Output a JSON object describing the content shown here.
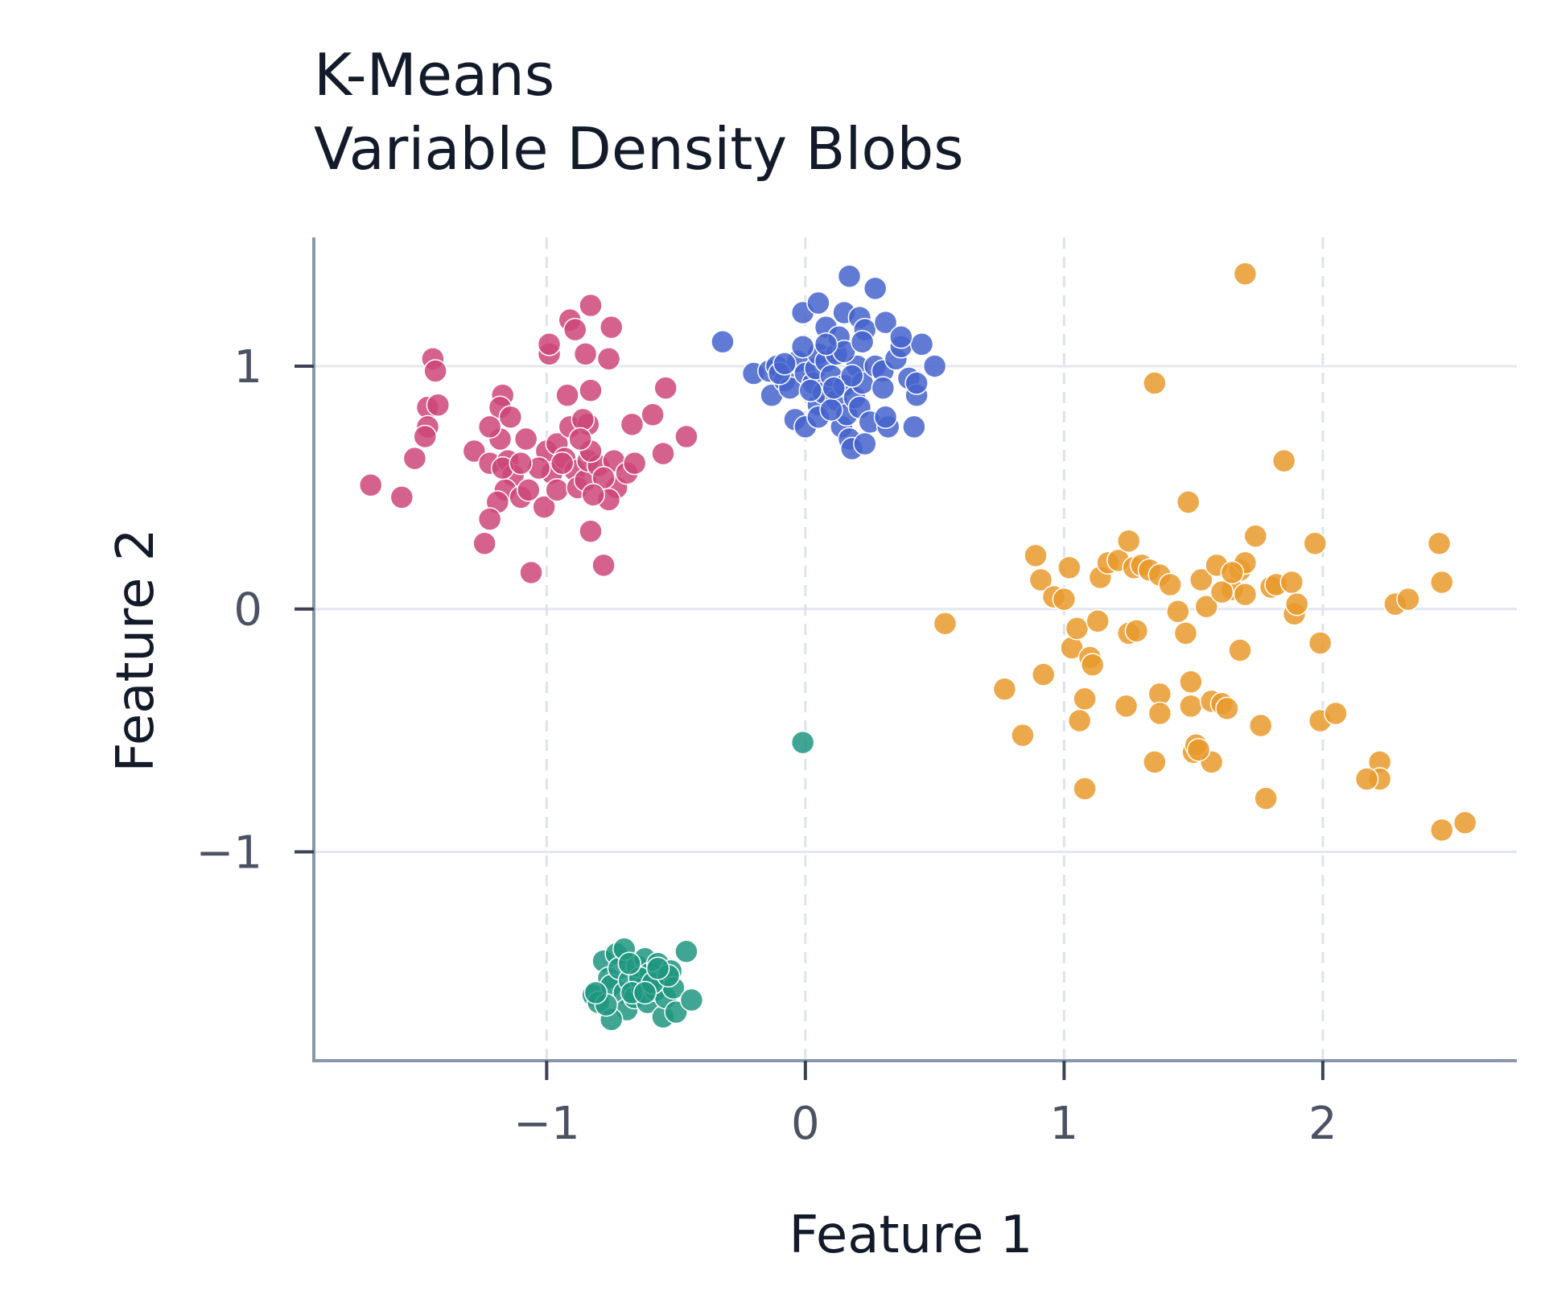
{
  "chart_data": {
    "type": "scatter",
    "title_lines": [
      "K-Means",
      "Variable Density Blobs"
    ],
    "xlabel": "Feature 1",
    "ylabel": "Feature 2",
    "xlim": [
      -1.9,
      2.75
    ],
    "ylim": [
      -1.86,
      1.53
    ],
    "xticks": [
      -1,
      0,
      1,
      2
    ],
    "yticks": [
      -1,
      0,
      1
    ],
    "xtick_labels": [
      "−1",
      "0",
      "1",
      "2"
    ],
    "ytick_labels": [
      "−1",
      "0",
      "1"
    ],
    "grid": true,
    "x_gridlines_dashed": true,
    "series": [
      {
        "color": "#cc4778",
        "points": [
          [
            -1.68,
            0.51
          ],
          [
            -1.56,
            0.46
          ],
          [
            -1.51,
            0.62
          ],
          [
            -1.44,
            1.03
          ],
          [
            -1.43,
            0.98
          ],
          [
            -1.46,
            0.83
          ],
          [
            -1.42,
            0.84
          ],
          [
            -1.46,
            0.75
          ],
          [
            -1.47,
            0.71
          ],
          [
            -1.28,
            0.65
          ],
          [
            -1.22,
            0.6
          ],
          [
            -1.17,
            0.88
          ],
          [
            -1.18,
            0.83
          ],
          [
            -1.18,
            0.7
          ],
          [
            -1.22,
            0.75
          ],
          [
            -1.14,
            0.79
          ],
          [
            -1.15,
            0.61
          ],
          [
            -1.13,
            0.55
          ],
          [
            -1.16,
            0.49
          ],
          [
            -1.19,
            0.44
          ],
          [
            -1.22,
            0.37
          ],
          [
            -1.24,
            0.27
          ],
          [
            -1.17,
            0.58
          ],
          [
            -1.1,
            0.46
          ],
          [
            -1.07,
            0.49
          ],
          [
            -1.01,
            0.42
          ],
          [
            -1.06,
            0.15
          ],
          [
            -0.98,
            0.56
          ],
          [
            -1.0,
            0.65
          ],
          [
            -0.96,
            0.49
          ],
          [
            -0.96,
            0.68
          ],
          [
            -0.93,
            0.62
          ],
          [
            -0.89,
            0.57
          ],
          [
            -0.88,
            0.5
          ],
          [
            -0.85,
            0.53
          ],
          [
            -0.84,
            0.61
          ],
          [
            -0.92,
            0.88
          ],
          [
            -0.91,
            0.75
          ],
          [
            -0.84,
            0.76
          ],
          [
            -0.83,
            0.9
          ],
          [
            -0.86,
            0.78
          ],
          [
            -0.8,
            0.59
          ],
          [
            -0.74,
            0.61
          ],
          [
            -0.73,
            0.5
          ],
          [
            -0.76,
            0.45
          ],
          [
            -0.78,
            0.54
          ],
          [
            -0.83,
            0.65
          ],
          [
            -0.82,
            0.47
          ],
          [
            -0.83,
            0.32
          ],
          [
            -0.78,
            0.18
          ],
          [
            -0.69,
            0.56
          ],
          [
            -0.67,
            0.76
          ],
          [
            -0.66,
            0.6
          ],
          [
            -0.59,
            0.8
          ],
          [
            -0.54,
            0.91
          ],
          [
            -0.55,
            0.64
          ],
          [
            -0.46,
            0.71
          ],
          [
            -0.99,
            1.05
          ],
          [
            -0.99,
            1.09
          ],
          [
            -0.91,
            1.19
          ],
          [
            -0.89,
            1.15
          ],
          [
            -0.83,
            1.25
          ],
          [
            -0.75,
            1.16
          ],
          [
            -0.85,
            1.05
          ],
          [
            -0.76,
            1.03
          ],
          [
            -0.87,
            0.7
          ],
          [
            -0.94,
            0.6
          ],
          [
            -1.03,
            0.58
          ],
          [
            -1.08,
            0.7
          ],
          [
            -1.1,
            0.6
          ]
        ]
      },
      {
        "color": "#4564cc",
        "points": [
          [
            -0.32,
            1.1
          ],
          [
            -0.2,
            0.97
          ],
          [
            -0.14,
            0.98
          ],
          [
            -0.13,
            0.88
          ],
          [
            -0.11,
            1.0
          ],
          [
            -0.08,
            0.94
          ],
          [
            -0.06,
            0.91
          ],
          [
            -0.03,
            1.02
          ],
          [
            -0.04,
            0.78
          ],
          [
            0.0,
            0.75
          ],
          [
            0.0,
            0.97
          ],
          [
            0.03,
            0.93
          ],
          [
            0.04,
            0.99
          ],
          [
            0.05,
            1.05
          ],
          [
            0.05,
            0.84
          ],
          [
            0.07,
            0.89
          ],
          [
            0.08,
            1.02
          ],
          [
            0.1,
            0.96
          ],
          [
            0.12,
            1.05
          ],
          [
            0.12,
            0.86
          ],
          [
            0.14,
            0.75
          ],
          [
            0.15,
            0.92
          ],
          [
            0.16,
            0.8
          ],
          [
            0.17,
            0.7
          ],
          [
            0.18,
            0.66
          ],
          [
            0.19,
            0.87
          ],
          [
            0.2,
            1.0
          ],
          [
            0.21,
            0.83
          ],
          [
            0.22,
            0.93
          ],
          [
            0.23,
            0.68
          ],
          [
            0.25,
            0.77
          ],
          [
            0.27,
            1.0
          ],
          [
            0.3,
            0.98
          ],
          [
            0.32,
            0.75
          ],
          [
            0.31,
            0.79
          ],
          [
            0.35,
            1.03
          ],
          [
            0.37,
            1.08
          ],
          [
            0.4,
            0.95
          ],
          [
            0.42,
            0.75
          ],
          [
            0.43,
            0.88
          ],
          [
            0.43,
            0.93
          ],
          [
            0.45,
            1.09
          ],
          [
            0.5,
            1.0
          ],
          [
            -0.01,
            1.22
          ],
          [
            0.05,
            1.26
          ],
          [
            0.08,
            1.16
          ],
          [
            0.13,
            1.12
          ],
          [
            0.15,
            1.22
          ],
          [
            0.17,
            1.37
          ],
          [
            0.21,
            1.2
          ],
          [
            0.23,
            1.15
          ],
          [
            0.27,
            1.32
          ],
          [
            0.31,
            1.18
          ],
          [
            0.37,
            1.12
          ],
          [
            0.05,
            0.79
          ],
          [
            0.1,
            0.82
          ],
          [
            0.15,
            1.06
          ],
          [
            0.22,
            1.1
          ],
          [
            0.3,
            0.91
          ],
          [
            -0.01,
            1.08
          ],
          [
            0.08,
            1.09
          ],
          [
            0.18,
            0.96
          ],
          [
            -0.1,
            0.97
          ],
          [
            -0.08,
            1.01
          ],
          [
            0.11,
            0.91
          ],
          [
            0.02,
            0.9
          ]
        ]
      },
      {
        "color": "#1e9680",
        "points": [
          [
            -0.01,
            -0.55
          ],
          [
            -0.82,
            -1.59
          ],
          [
            -0.8,
            -1.62
          ],
          [
            -0.78,
            -1.45
          ],
          [
            -0.76,
            -1.52
          ],
          [
            -0.75,
            -1.55
          ],
          [
            -0.73,
            -1.42
          ],
          [
            -0.72,
            -1.48
          ],
          [
            -0.7,
            -1.58
          ],
          [
            -0.69,
            -1.65
          ],
          [
            -0.68,
            -1.53
          ],
          [
            -0.66,
            -1.6
          ],
          [
            -0.65,
            -1.47
          ],
          [
            -0.63,
            -1.56
          ],
          [
            -0.62,
            -1.44
          ],
          [
            -0.61,
            -1.62
          ],
          [
            -0.6,
            -1.5
          ],
          [
            -0.58,
            -1.57
          ],
          [
            -0.57,
            -1.46
          ],
          [
            -0.56,
            -1.53
          ],
          [
            -0.55,
            -1.68
          ],
          [
            -0.54,
            -1.6
          ],
          [
            -0.52,
            -1.49
          ],
          [
            -0.51,
            -1.56
          ],
          [
            -0.5,
            -1.66
          ],
          [
            -0.46,
            -1.41
          ],
          [
            -0.44,
            -1.61
          ],
          [
            -0.75,
            -1.69
          ],
          [
            -0.77,
            -1.63
          ],
          [
            -0.7,
            -1.4
          ],
          [
            -0.64,
            -1.52
          ],
          [
            -0.67,
            -1.58
          ],
          [
            -0.59,
            -1.54
          ],
          [
            -0.53,
            -1.51
          ],
          [
            -0.81,
            -1.58
          ],
          [
            -0.62,
            -1.58
          ],
          [
            -0.57,
            -1.48
          ],
          [
            -0.68,
            -1.46
          ]
        ]
      },
      {
        "color": "#e99a2c",
        "points": [
          [
            0.54,
            -0.06
          ],
          [
            0.77,
            -0.33
          ],
          [
            0.84,
            -0.52
          ],
          [
            0.89,
            0.22
          ],
          [
            0.91,
            0.12
          ],
          [
            0.92,
            -0.27
          ],
          [
            0.96,
            0.05
          ],
          [
            1.0,
            0.04
          ],
          [
            1.02,
            0.17
          ],
          [
            1.03,
            -0.16
          ],
          [
            1.05,
            -0.08
          ],
          [
            1.06,
            -0.46
          ],
          [
            1.08,
            -0.37
          ],
          [
            1.08,
            -0.74
          ],
          [
            1.1,
            -0.2
          ],
          [
            1.11,
            -0.23
          ],
          [
            1.13,
            -0.05
          ],
          [
            1.14,
            0.13
          ],
          [
            1.17,
            0.19
          ],
          [
            1.21,
            0.2
          ],
          [
            1.25,
            0.28
          ],
          [
            1.25,
            -0.1
          ],
          [
            1.24,
            -0.4
          ],
          [
            1.27,
            0.17
          ],
          [
            1.28,
            -0.09
          ],
          [
            1.3,
            0.18
          ],
          [
            1.33,
            0.16
          ],
          [
            1.35,
            0.93
          ],
          [
            1.37,
            0.14
          ],
          [
            1.37,
            -0.35
          ],
          [
            1.37,
            -0.43
          ],
          [
            1.35,
            -0.63
          ],
          [
            1.41,
            0.1
          ],
          [
            1.44,
            -0.01
          ],
          [
            1.47,
            -0.1
          ],
          [
            1.48,
            0.44
          ],
          [
            1.49,
            -0.3
          ],
          [
            1.49,
            -0.4
          ],
          [
            1.5,
            -0.59
          ],
          [
            1.51,
            -0.56
          ],
          [
            1.53,
            0.12
          ],
          [
            1.55,
            0.01
          ],
          [
            1.57,
            -0.38
          ],
          [
            1.57,
            -0.63
          ],
          [
            1.59,
            0.18
          ],
          [
            1.61,
            -0.39
          ],
          [
            1.63,
            -0.41
          ],
          [
            1.65,
            0.08
          ],
          [
            1.68,
            0.16
          ],
          [
            1.7,
            0.19
          ],
          [
            1.7,
            1.38
          ],
          [
            1.68,
            -0.17
          ],
          [
            1.74,
            0.3
          ],
          [
            1.76,
            -0.48
          ],
          [
            1.78,
            -0.78
          ],
          [
            1.8,
            0.09
          ],
          [
            1.82,
            0.1
          ],
          [
            1.85,
            0.61
          ],
          [
            1.88,
            0.11
          ],
          [
            1.89,
            -0.02
          ],
          [
            1.9,
            0.02
          ],
          [
            1.97,
            0.27
          ],
          [
            1.99,
            -0.14
          ],
          [
            1.99,
            -0.46
          ],
          [
            2.05,
            -0.43
          ],
          [
            2.22,
            -0.63
          ],
          [
            2.22,
            -0.7
          ],
          [
            2.17,
            -0.7
          ],
          [
            2.28,
            0.02
          ],
          [
            2.33,
            0.04
          ],
          [
            2.45,
            0.27
          ],
          [
            2.46,
            0.11
          ],
          [
            2.46,
            -0.91
          ],
          [
            2.55,
            -0.88
          ],
          [
            1.7,
            0.06
          ],
          [
            1.61,
            0.07
          ],
          [
            1.65,
            0.15
          ],
          [
            1.52,
            -0.58
          ]
        ]
      }
    ]
  }
}
